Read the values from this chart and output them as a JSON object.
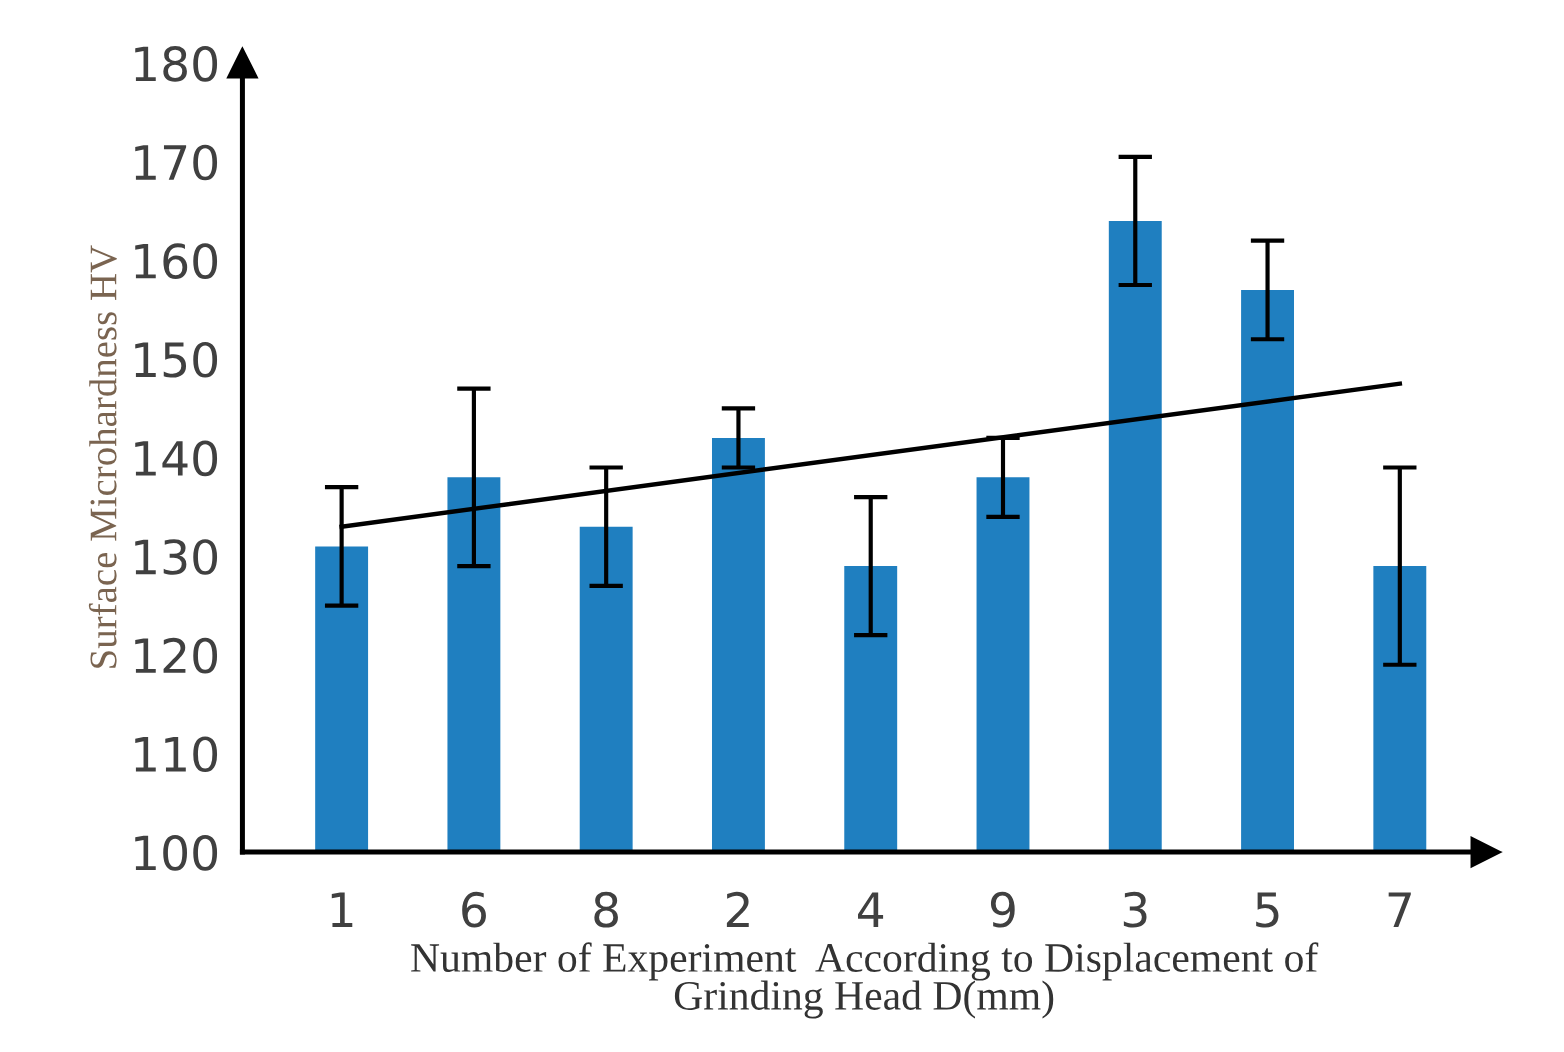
{
  "chart_data": {
    "type": "bar",
    "xlabel": "Number of Experiment  According to Displacement of\nGrinding Head D(mm)",
    "ylabel": "Surface Microhardness HV",
    "categories": [
      "1",
      "6",
      "8",
      "2",
      "4",
      "9",
      "3",
      "5",
      "7"
    ],
    "series": [
      {
        "color": "#1f7fc0",
        "values": [
          131,
          138,
          133,
          142,
          129,
          138,
          164,
          157,
          129
        ],
        "errors": [
          6,
          9,
          6,
          3,
          7,
          4,
          6.5,
          5,
          10
        ]
      },
      {
        "type": "line",
        "color": "#000000",
        "x": [
          "1",
          "7"
        ],
        "values": [
          133,
          147.5
        ]
      }
    ],
    "ylim": [
      100,
      180
    ],
    "yticks": [
      100,
      110,
      120,
      130,
      140,
      150,
      160,
      170,
      180
    ],
    "grid": false,
    "legend": false
  }
}
